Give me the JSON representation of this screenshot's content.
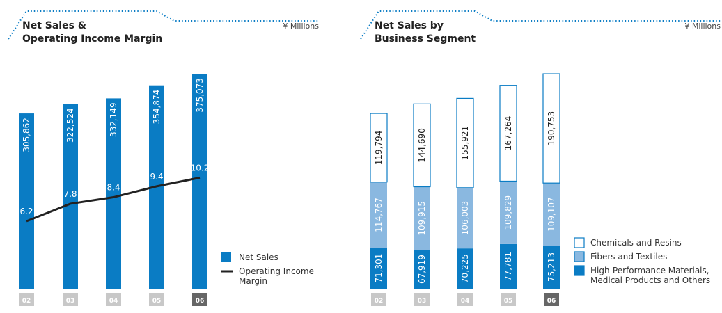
{
  "chart_data": [
    {
      "type": "bar_line",
      "title": [
        "Net Sales &",
        "Operating Income Margin"
      ],
      "unit": "¥ Millions",
      "categories": [
        "02",
        "03",
        "04",
        "05",
        "06"
      ],
      "series": [
        {
          "name": "Net Sales",
          "color": "#0a7cc4",
          "values": [
            305862,
            322524,
            332149,
            354874,
            375073
          ],
          "value_labels": [
            "305,862",
            "322,524",
            "332,149",
            "354,874",
            "375,073"
          ]
        },
        {
          "name": "Operating Income Margin",
          "color": "#222222",
          "axis": "y2",
          "values": [
            6.2,
            7.8,
            8.4,
            9.4,
            10.2
          ]
        }
      ],
      "ylim": [
        0,
        380000
      ],
      "y2lim": [
        0,
        20
      ]
    },
    {
      "type": "stacked_bar",
      "title": [
        "Net Sales by",
        "Business Segment"
      ],
      "unit": "¥ Millions",
      "categories": [
        "02",
        "03",
        "04",
        "05",
        "06"
      ],
      "series": [
        {
          "name": "High-Performance Materials, Medical Products and Others",
          "color": "#0a7cc4",
          "values": [
            71301,
            67919,
            70225,
            77781,
            75213
          ],
          "value_labels": [
            "71,301",
            "67,919",
            "70,225",
            "77,781",
            "75,213"
          ]
        },
        {
          "name": "Fibers and Textiles",
          "color": "#8ab8e0",
          "values": [
            114767,
            109915,
            106003,
            109829,
            109107
          ],
          "value_labels": [
            "114,767",
            "109,915",
            "106,003",
            "109,829",
            "109,107"
          ]
        },
        {
          "name": "Chemicals and Resins",
          "color": "#ffffff",
          "values": [
            119794,
            144690,
            155921,
            167264,
            190753
          ],
          "value_labels": [
            "119,794",
            "144,690",
            "155,921",
            "167,264",
            "190,753"
          ]
        }
      ],
      "ylim": [
        0,
        380000
      ]
    }
  ]
}
